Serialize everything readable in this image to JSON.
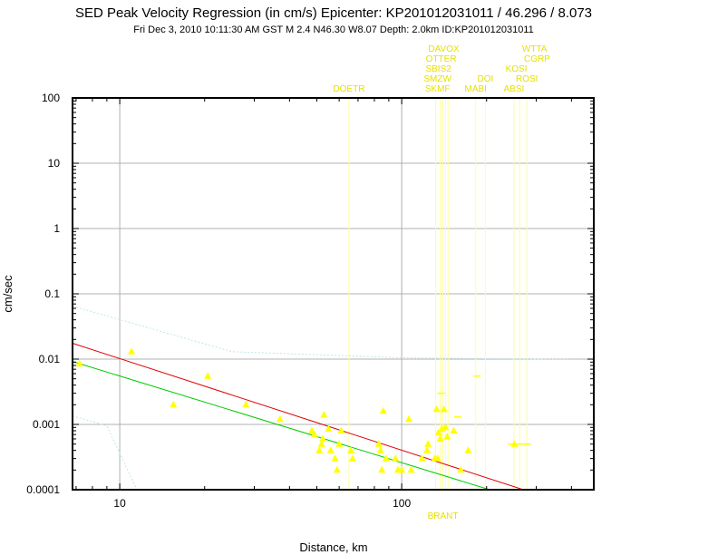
{
  "chart_data": {
    "type": "scatter",
    "title": "SED Peak Velocity Regression (in cm/s) Epicenter: KP201012031011 / 46.296 / 8.073",
    "subtitle": "Fri Dec  3, 2010 10:11:30 AM GST    M 2.4    N46.30 W8.07    Depth: 2.0km    ID:KP201012031011",
    "xlabel": "Distance, km",
    "ylabel": "cm/sec",
    "xscale": "log",
    "yscale": "log",
    "xlim": [
      6.8,
      480
    ],
    "ylim": [
      0.0001,
      100
    ],
    "grid": true,
    "x_tick_labels": [
      "10",
      "100"
    ],
    "y_tick_labels": [
      "0.0001",
      "0.001",
      "0.01",
      "0.1",
      "1",
      "10",
      "100"
    ],
    "colors": {
      "points": "#ffff00",
      "regression": "#e00000",
      "fit": "#00cc00",
      "bounds": "#bfe8e8",
      "station_text": "#e8e000",
      "station_lines": "#ffff99",
      "grid": "#b0b0b0"
    },
    "regression_line": [
      [
        6.8,
        0.0175
      ],
      [
        270,
        0.0001
      ]
    ],
    "fit_line": [
      [
        6.8,
        0.0092
      ],
      [
        205,
        0.0001
      ]
    ],
    "upper_bound": [
      [
        6.8,
        0.065
      ],
      [
        25,
        0.013
      ],
      [
        100,
        0.0105
      ],
      [
        480,
        0.0098
      ]
    ],
    "lower_bound": [
      [
        6.8,
        0.00135
      ],
      [
        9,
        0.00095
      ],
      [
        11.5,
        0.0001
      ]
    ],
    "points": [
      [
        7.2,
        0.0085
      ],
      [
        11,
        0.013
      ],
      [
        15.5,
        0.002
      ],
      [
        20.5,
        0.0055
      ],
      [
        28,
        0.002
      ],
      [
        37,
        0.0012
      ],
      [
        48,
        0.0008
      ],
      [
        49,
        0.0007
      ],
      [
        51,
        0.0004
      ],
      [
        52,
        0.0005
      ],
      [
        52.5,
        0.0006
      ],
      [
        53,
        0.0014
      ],
      [
        55,
        0.00085
      ],
      [
        56,
        0.0004
      ],
      [
        58,
        0.0003
      ],
      [
        59,
        0.0002
      ],
      [
        60,
        0.0005
      ],
      [
        61,
        0.0008
      ],
      [
        66,
        0.0004
      ],
      [
        67,
        0.0003
      ],
      [
        83,
        0.0005
      ],
      [
        84,
        0.0004
      ],
      [
        85,
        0.0002
      ],
      [
        86,
        0.0016
      ],
      [
        88,
        0.0003
      ],
      [
        95,
        0.0003
      ],
      [
        97,
        0.0002
      ],
      [
        100,
        0.0002
      ],
      [
        106,
        0.0012
      ],
      [
        108,
        0.0002
      ],
      [
        118,
        0.0003
      ],
      [
        123,
        0.0004
      ],
      [
        124,
        0.0005
      ],
      [
        131,
        0.0003
      ],
      [
        133,
        0.0017
      ],
      [
        134,
        0.0003
      ],
      [
        135,
        0.00075
      ],
      [
        137,
        0.0006
      ],
      [
        139,
        0.00085
      ],
      [
        141,
        0.0017
      ],
      [
        143,
        0.0009
      ],
      [
        145,
        0.00065
      ],
      [
        153,
        0.0008
      ],
      [
        162,
        0.0002
      ],
      [
        172,
        0.0004
      ],
      [
        251,
        0.0005
      ]
    ],
    "dash_marks": [
      [
        138,
        0.003
      ],
      [
        158,
        0.0013
      ],
      [
        185,
        0.0055
      ],
      [
        245,
        0.0005
      ],
      [
        262,
        0.0005
      ],
      [
        278,
        0.0005
      ],
      [
        118,
        0.0001
      ],
      [
        128,
        0.0001
      ],
      [
        148,
        0.0001
      ],
      [
        168,
        0.0001
      ],
      [
        188,
        0.0001
      ],
      [
        196,
        0.0001
      ]
    ],
    "stations": [
      {
        "name": "DOETR",
        "x": 65,
        "row": 0
      },
      {
        "name": "SKMF",
        "x": 134,
        "row": 0
      },
      {
        "name": "SMZW",
        "x": 134,
        "row": 1
      },
      {
        "name": "SBIS2",
        "x": 135,
        "row": 2
      },
      {
        "name": "OTTER",
        "x": 138,
        "row": 3
      },
      {
        "name": "DAVOX",
        "x": 141,
        "row": 4
      },
      {
        "name": "MABI",
        "x": 183,
        "row": 0
      },
      {
        "name": "DOI",
        "x": 198,
        "row": 1
      },
      {
        "name": "ABSI",
        "x": 250,
        "row": 0
      },
      {
        "name": "ROSI",
        "x": 278,
        "row": 1
      },
      {
        "name": "KOSI",
        "x": 255,
        "row": 2
      },
      {
        "name": "CGRP",
        "x": 302,
        "row": 3
      },
      {
        "name": "WTTA",
        "x": 296,
        "row": 4
      }
    ],
    "station_lines_x": [
      65,
      132,
      137,
      140,
      143,
      146,
      183,
      198,
      250,
      262,
      278
    ],
    "bottom_station": {
      "name": "BRANT",
      "x": 140
    }
  }
}
